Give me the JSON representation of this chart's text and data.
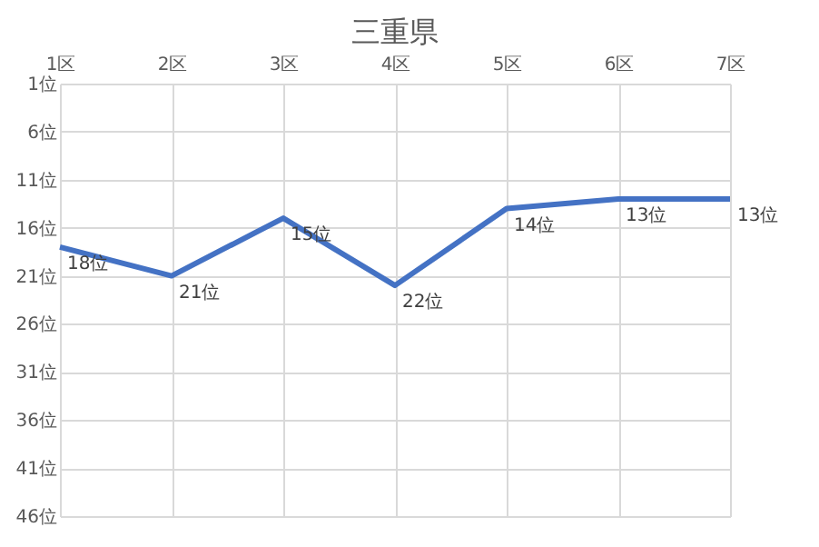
{
  "chart_data": {
    "type": "line",
    "title": "三重県",
    "categories": [
      "1区",
      "2区",
      "3区",
      "4区",
      "5区",
      "6区",
      "7区"
    ],
    "series": [
      {
        "color": "#4472c4",
        "values": [
          18,
          21,
          15,
          22,
          14,
          13,
          13
        ],
        "value_labels": [
          "18位",
          "21位",
          "15位",
          "22位",
          "14位",
          "13位",
          "13位"
        ]
      }
    ],
    "ylim": [
      46,
      1
    ],
    "yticks": [
      {
        "value": 1,
        "label": "1位"
      },
      {
        "value": 6,
        "label": "6位"
      },
      {
        "value": 11,
        "label": "11位"
      },
      {
        "value": 16,
        "label": "16位"
      },
      {
        "value": 21,
        "label": "21位"
      },
      {
        "value": 26,
        "label": "26位"
      },
      {
        "value": 31,
        "label": "31位"
      },
      {
        "value": 36,
        "label": "36位"
      },
      {
        "value": 41,
        "label": "41位"
      },
      {
        "value": 46,
        "label": "46位"
      }
    ],
    "grid": true,
    "marker": "none",
    "line_style": "solid"
  }
}
